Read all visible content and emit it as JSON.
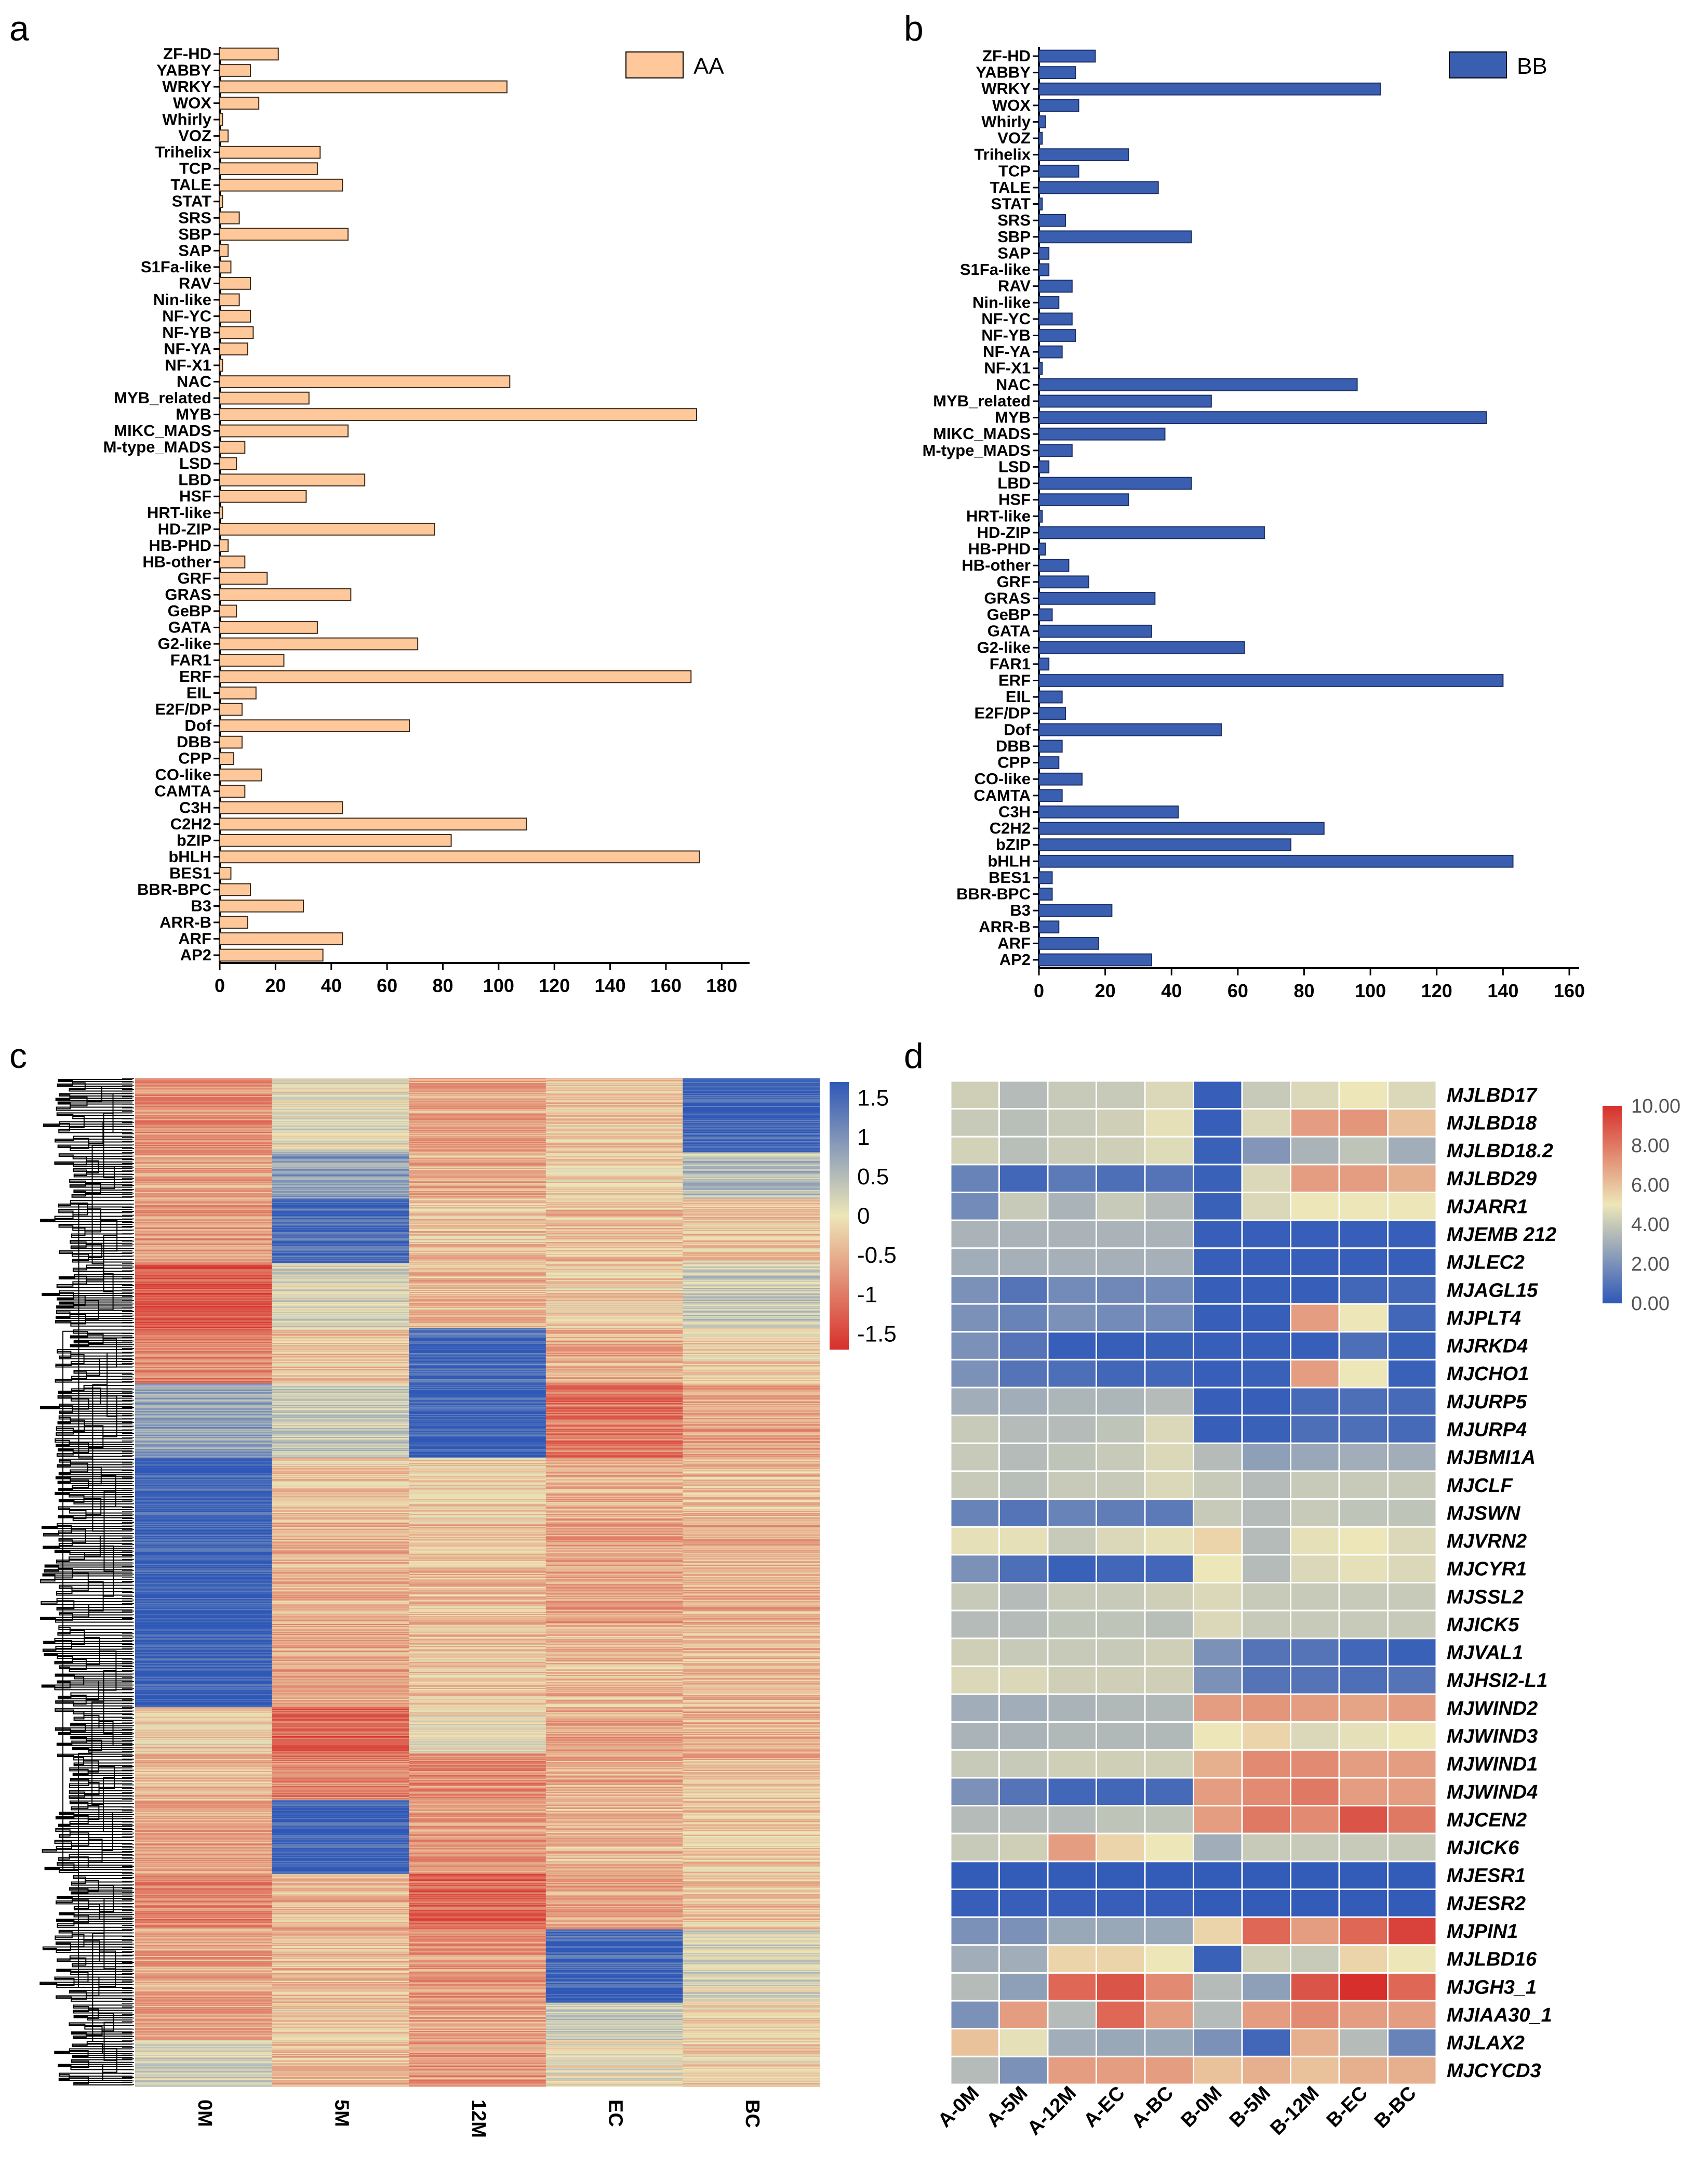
{
  "colors": {
    "aa_fill": "#FFC89A",
    "bb_fill": "#3A5FB0",
    "heat_blue": "#2F58B8",
    "heat_mid": "#EDE6B8",
    "heat_red": "#D7302C"
  },
  "chart_data": [
    {
      "panel": "a",
      "type": "bar",
      "orientation": "horizontal",
      "legend": "AA",
      "legend_position": "top-right",
      "categories": [
        "ZF-HD",
        "YABBY",
        "WRKY",
        "WOX",
        "Whirly",
        "VOZ",
        "Trihelix",
        "TCP",
        "TALE",
        "STAT",
        "SRS",
        "SBP",
        "SAP",
        "S1Fa-like",
        "RAV",
        "Nin-like",
        "NF-YC",
        "NF-YB",
        "NF-YA",
        "NF-X1",
        "NAC",
        "MYB_related",
        "MYB",
        "MIKC_MADS",
        "M-type_MADS",
        "LSD",
        "LBD",
        "HSF",
        "HRT-like",
        "HD-ZIP",
        "HB-PHD",
        "HB-other",
        "GRF",
        "GRAS",
        "GeBP",
        "GATA",
        "G2-like",
        "FAR1",
        "ERF",
        "EIL",
        "E2F/DP",
        "Dof",
        "DBB",
        "CPP",
        "CO-like",
        "CAMTA",
        "C3H",
        "C2H2",
        "bZIP",
        "bHLH",
        "BES1",
        "BBR-BPC",
        "B3",
        "ARR-B",
        "ARF",
        "AP2"
      ],
      "values": [
        21,
        11,
        103,
        14,
        1,
        3,
        36,
        35,
        44,
        1,
        7,
        46,
        3,
        4,
        11,
        7,
        11,
        12,
        10,
        1,
        104,
        32,
        171,
        46,
        9,
        6,
        52,
        31,
        1,
        77,
        3,
        9,
        17,
        47,
        6,
        35,
        71,
        23,
        169,
        13,
        8,
        68,
        8,
        5,
        15,
        9,
        44,
        110,
        83,
        172,
        4,
        11,
        30,
        10,
        44,
        37
      ],
      "xlim": [
        0,
        190
      ],
      "xticks": [
        "0",
        "20",
        "40",
        "60",
        "80",
        "100",
        "120",
        "140",
        "160",
        "180"
      ]
    },
    {
      "panel": "b",
      "type": "bar",
      "orientation": "horizontal",
      "legend": "BB",
      "legend_position": "top-right",
      "categories": [
        "ZF-HD",
        "YABBY",
        "WRKY",
        "WOX",
        "Whirly",
        "VOZ",
        "Trihelix",
        "TCP",
        "TALE",
        "STAT",
        "SRS",
        "SBP",
        "SAP",
        "S1Fa-like",
        "RAV",
        "Nin-like",
        "NF-YC",
        "NF-YB",
        "NF-YA",
        "NF-X1",
        "NAC",
        "MYB_related",
        "MYB",
        "MIKC_MADS",
        "M-type_MADS",
        "LSD",
        "LBD",
        "HSF",
        "HRT-like",
        "HD-ZIP",
        "HB-PHD",
        "HB-other",
        "GRF",
        "GRAS",
        "GeBP",
        "GATA",
        "G2-like",
        "FAR1",
        "ERF",
        "EIL",
        "E2F/DP",
        "Dof",
        "DBB",
        "CPP",
        "CO-like",
        "CAMTA",
        "C3H",
        "C2H2",
        "bZIP",
        "bHLH",
        "BES1",
        "BBR-BPC",
        "B3",
        "ARR-B",
        "ARF",
        "AP2"
      ],
      "values": [
        17,
        11,
        103,
        12,
        2,
        1,
        27,
        12,
        36,
        1,
        8,
        46,
        3,
        3,
        10,
        6,
        10,
        11,
        7,
        1,
        96,
        52,
        135,
        38,
        10,
        3,
        46,
        27,
        1,
        68,
        2,
        9,
        15,
        35,
        4,
        34,
        62,
        3,
        140,
        7,
        8,
        55,
        7,
        6,
        13,
        7,
        42,
        86,
        76,
        143,
        4,
        4,
        22,
        6,
        18,
        34
      ],
      "xlim": [
        0,
        160
      ],
      "xticks": [
        "0",
        "20",
        "40",
        "60",
        "80",
        "100",
        "120",
        "140",
        "160"
      ]
    },
    {
      "panel": "c",
      "type": "heatmap",
      "columns": [
        "0M",
        "5M",
        "12M",
        "EC",
        "BC"
      ],
      "colorbar_ticks": [
        "1.5",
        "1",
        "0.5",
        "0",
        "-0.5",
        "-1",
        "-1.5"
      ],
      "colorbar_range": [
        -1.7,
        1.7
      ],
      "row_clusters": [
        {
          "rows": 80,
          "values": [
            -0.8,
            0.1,
            -0.6,
            -0.3,
            1.6
          ]
        },
        {
          "rows": 50,
          "values": [
            -0.6,
            0.9,
            -0.5,
            -0.2,
            0.5
          ]
        },
        {
          "rows": 70,
          "values": [
            -0.7,
            1.5,
            -0.3,
            -0.4,
            -0.3
          ]
        },
        {
          "rows": 70,
          "values": [
            -1.3,
            0.2,
            -0.4,
            -0.2,
            0.3
          ]
        },
        {
          "rows": 60,
          "values": [
            -0.9,
            -0.3,
            1.5,
            -0.5,
            -0.2
          ]
        },
        {
          "rows": 80,
          "values": [
            0.8,
            0.3,
            1.6,
            -1.0,
            -0.6
          ]
        },
        {
          "rows": 70,
          "values": [
            1.6,
            -0.3,
            -0.2,
            -0.5,
            -0.4
          ]
        },
        {
          "rows": 110,
          "values": [
            1.6,
            -0.5,
            -0.4,
            -0.6,
            -0.5
          ]
        },
        {
          "rows": 90,
          "values": [
            1.6,
            -0.6,
            -0.3,
            -0.4,
            -0.4
          ]
        },
        {
          "rows": 50,
          "values": [
            -0.2,
            -1.2,
            0.0,
            -0.6,
            -0.5
          ]
        },
        {
          "rows": 50,
          "values": [
            -0.4,
            -0.9,
            -0.8,
            -0.5,
            -0.4
          ]
        },
        {
          "rows": 80,
          "values": [
            -0.6,
            1.6,
            -0.7,
            -0.4,
            -0.3
          ]
        },
        {
          "rows": 60,
          "values": [
            -0.9,
            -0.5,
            -1.2,
            -0.6,
            -0.3
          ]
        },
        {
          "rows": 80,
          "values": [
            -0.6,
            -0.4,
            -0.7,
            1.5,
            0.2
          ]
        },
        {
          "rows": 40,
          "values": [
            -0.6,
            -0.2,
            -0.6,
            0.3,
            -0.2
          ]
        },
        {
          "rows": 50,
          "values": [
            0.2,
            -0.4,
            -0.7,
            0.0,
            -0.2
          ]
        }
      ]
    },
    {
      "panel": "d",
      "type": "heatmap",
      "columns": [
        "A-0M",
        "A-5M",
        "A-12M",
        "A-EC",
        "A-BC",
        "B-0M",
        "B-5M",
        "B-12M",
        "B-EC",
        "B-BC"
      ],
      "rows": [
        "MJLBD17",
        "MJLBD18",
        "MJLBD18.2",
        "MJLBD29",
        "MJARR1",
        "MJEMB 212",
        "MJLEC2",
        "MJAGL15",
        "MJPLT4",
        "MJRKD4",
        "MJCHO1",
        "MJURP5",
        "MJURP4",
        "MJBMI1A",
        "MJCLF",
        "MJSWN",
        "MJVRN2",
        "MJCYR1",
        "MJSSL2",
        "MJICK5",
        "MJVAL1",
        "MJHSI2-L1",
        "MJWIND2",
        "MJWIND3",
        "MJWIND1",
        "MJWIND4",
        "MJCEN2",
        "MJICK6",
        "MJESR1",
        "MJESR2",
        "MJPIN1",
        "MJLBD16",
        "MJGH3_1",
        "MJIAA30_1",
        "MJLAX2",
        "MJCYCD3"
      ],
      "values": [
        [
          4.2,
          3.5,
          4.0,
          4.0,
          4.5,
          0.2,
          4.0,
          4.5,
          5.0,
          4.5
        ],
        [
          4.0,
          3.6,
          4.0,
          4.2,
          4.8,
          0.2,
          4.5,
          7.0,
          7.2,
          6.0
        ],
        [
          4.3,
          3.6,
          4.1,
          4.2,
          4.6,
          0.3,
          2.2,
          3.2,
          3.8,
          3.0
        ],
        [
          1.5,
          0.5,
          1.2,
          0.8,
          1.0,
          0.3,
          4.5,
          7.0,
          7.0,
          6.5
        ],
        [
          1.8,
          4.0,
          3.2,
          4.0,
          3.5,
          0.3,
          4.5,
          5.0,
          5.0,
          5.0
        ],
        [
          3.2,
          3.2,
          3.2,
          3.2,
          3.2,
          0.2,
          0.2,
          0.2,
          0.2,
          0.2
        ],
        [
          3.0,
          3.1,
          3.1,
          3.1,
          3.1,
          0.2,
          0.2,
          0.2,
          0.2,
          0.2
        ],
        [
          2.0,
          1.0,
          1.8,
          1.7,
          1.8,
          0.2,
          0.2,
          0.2,
          0.5,
          0.5
        ],
        [
          2.0,
          1.5,
          2.0,
          1.8,
          1.8,
          0.2,
          0.2,
          7.0,
          5.0,
          0.5
        ],
        [
          2.0,
          1.0,
          0.2,
          0.2,
          0.3,
          0.2,
          0.2,
          0.2,
          0.8,
          0.3
        ],
        [
          2.0,
          1.0,
          0.8,
          0.5,
          0.5,
          0.2,
          0.3,
          7.0,
          5.0,
          0.3
        ],
        [
          3.0,
          3.0,
          3.3,
          3.3,
          3.5,
          0.2,
          0.2,
          0.6,
          0.8,
          0.6
        ],
        [
          4.0,
          3.5,
          3.5,
          3.8,
          4.5,
          0.2,
          0.3,
          0.8,
          0.8,
          0.6
        ],
        [
          4.0,
          3.5,
          3.8,
          4.0,
          4.5,
          3.5,
          2.5,
          2.8,
          3.0,
          3.0
        ],
        [
          4.0,
          3.6,
          4.0,
          4.0,
          4.5,
          4.0,
          3.5,
          4.0,
          4.0,
          4.0
        ],
        [
          1.5,
          1.0,
          1.5,
          1.3,
          1.2,
          4.0,
          3.5,
          4.0,
          3.8,
          3.8
        ],
        [
          4.8,
          4.8,
          4.0,
          4.5,
          4.8,
          5.5,
          3.5,
          4.8,
          5.0,
          4.5
        ],
        [
          2.0,
          0.8,
          0.3,
          0.5,
          0.5,
          5.0,
          3.5,
          4.5,
          4.8,
          4.5
        ],
        [
          4.0,
          3.5,
          4.0,
          4.0,
          4.2,
          4.5,
          4.0,
          4.0,
          4.0,
          4.0
        ],
        [
          3.5,
          3.5,
          3.8,
          3.8,
          3.6,
          4.5,
          4.0,
          4.0,
          4.0,
          4.0
        ],
        [
          4.2,
          4.0,
          4.0,
          4.0,
          4.2,
          2.0,
          1.0,
          1.0,
          0.5,
          0.3
        ],
        [
          4.5,
          4.5,
          4.2,
          4.2,
          4.2,
          2.0,
          1.0,
          1.0,
          0.8,
          1.0
        ],
        [
          3.0,
          3.0,
          3.2,
          3.4,
          3.4,
          7.0,
          7.2,
          7.0,
          6.8,
          7.0
        ],
        [
          3.2,
          3.2,
          3.4,
          3.4,
          3.4,
          5.0,
          5.5,
          4.5,
          4.8,
          5.0
        ],
        [
          4.0,
          4.0,
          4.2,
          4.2,
          4.2,
          6.5,
          7.5,
          7.5,
          7.0,
          7.0
        ],
        [
          2.0,
          1.0,
          0.5,
          0.5,
          0.6,
          7.0,
          7.5,
          8.0,
          7.0,
          7.0
        ],
        [
          3.5,
          3.5,
          3.5,
          3.8,
          3.8,
          7.0,
          8.0,
          7.5,
          9.0,
          8.0
        ],
        [
          4.0,
          4.2,
          7.0,
          5.5,
          5.0,
          3.0,
          4.0,
          4.0,
          4.0,
          4.0
        ],
        [
          0.1,
          0.1,
          0.1,
          0.1,
          0.1,
          0.1,
          0.1,
          0.1,
          0.1,
          0.1
        ],
        [
          0.2,
          0.2,
          0.2,
          0.2,
          0.2,
          0.1,
          0.1,
          0.1,
          0.1,
          0.1
        ],
        [
          2.0,
          2.0,
          2.8,
          2.8,
          2.8,
          5.5,
          8.5,
          7.0,
          8.5,
          9.5
        ],
        [
          3.0,
          3.0,
          5.5,
          5.5,
          5.0,
          0.3,
          4.2,
          4.0,
          5.5,
          5.0
        ],
        [
          3.5,
          2.5,
          8.5,
          9.0,
          7.5,
          3.5,
          2.5,
          9.0,
          10.0,
          8.5
        ],
        [
          2.0,
          7.0,
          3.5,
          8.5,
          7.0,
          3.5,
          7.0,
          7.5,
          7.0,
          7.0
        ],
        [
          6.0,
          4.8,
          3.0,
          2.8,
          2.8,
          2.0,
          0.5,
          6.5,
          3.5,
          1.5
        ],
        [
          3.5,
          2.0,
          7.0,
          7.0,
          7.0,
          6.0,
          6.5,
          6.0,
          6.5,
          6.5
        ]
      ],
      "colorbar_ticks": [
        "10.00",
        "8.00",
        "6.00",
        "4.00",
        "2.00",
        "0.00"
      ],
      "colorbar_range": [
        0,
        10
      ]
    }
  ]
}
